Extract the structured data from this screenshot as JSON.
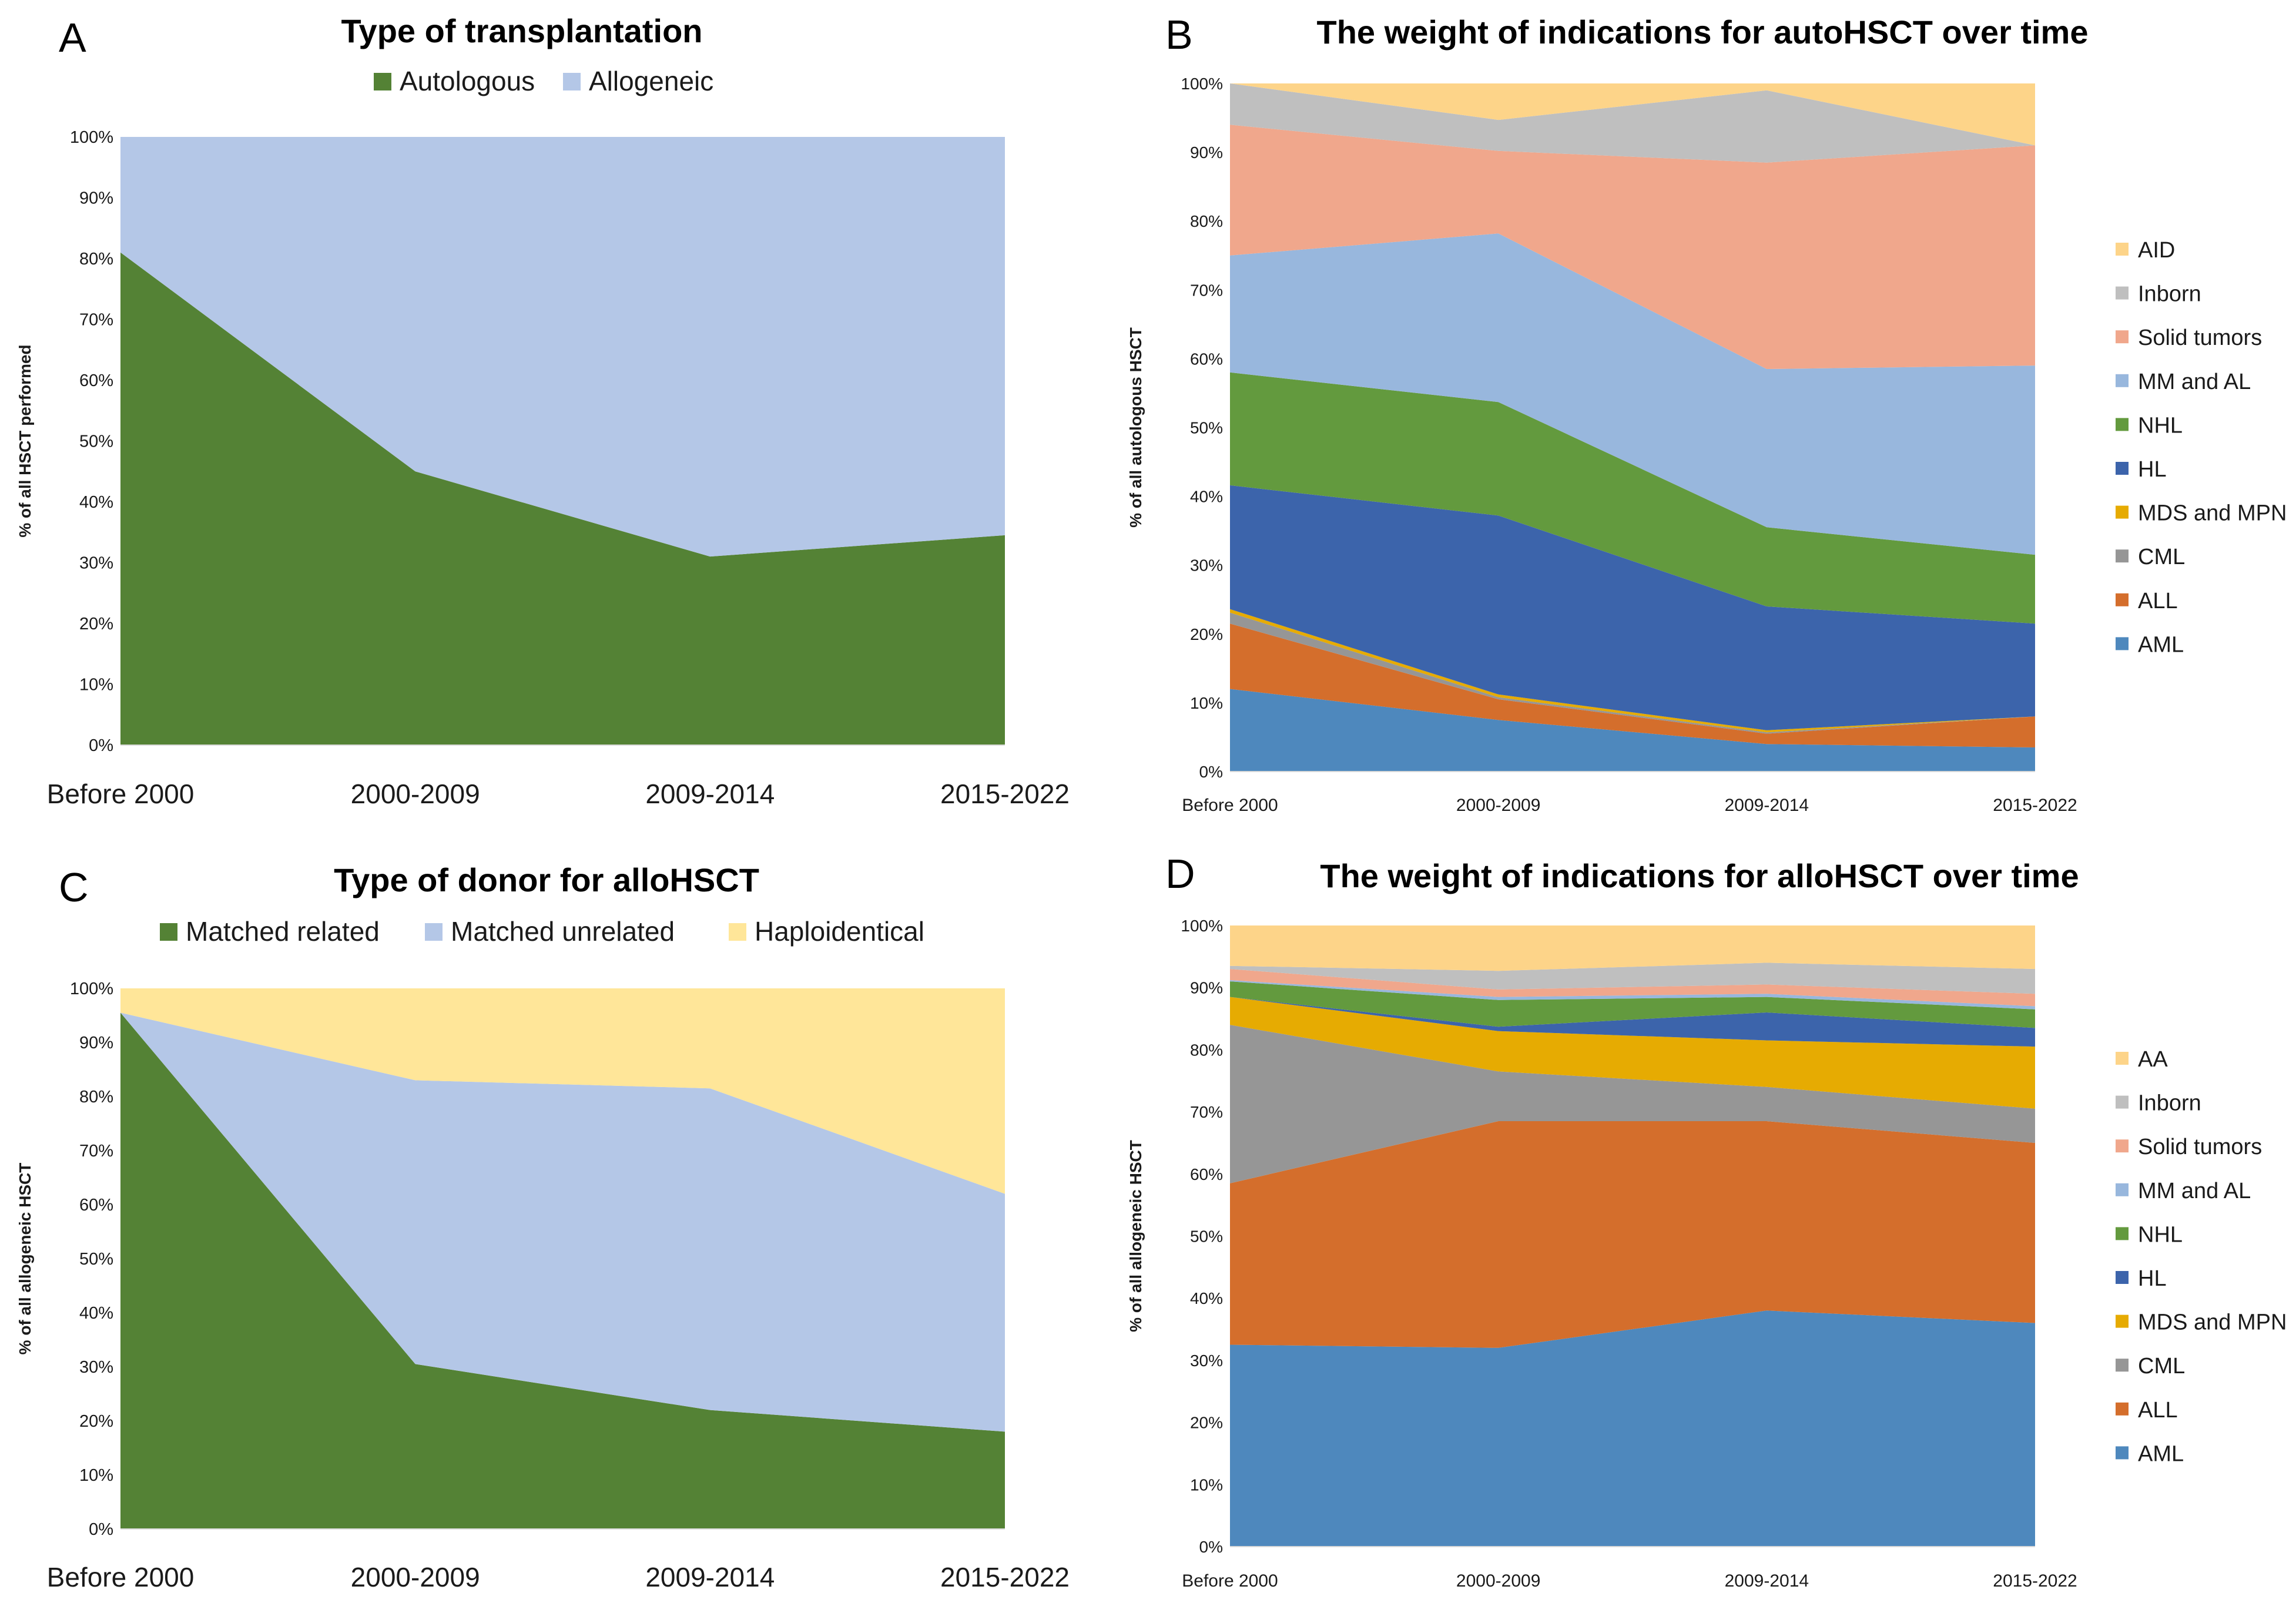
{
  "chart_data": [
    {
      "panel": "A",
      "type": "area",
      "stacked": true,
      "title": "Type of transplantation",
      "xlabel": "",
      "ylabel": "% of all HSCT performed",
      "ylim": [
        0,
        100
      ],
      "yticks": [
        "0%",
        "10%",
        "20%",
        "30%",
        "40%",
        "50%",
        "60%",
        "70%",
        "80%",
        "90%",
        "100%"
      ],
      "categories": [
        "Before 2000",
        "2000-2009",
        "2009-2014",
        "2015-2022"
      ],
      "legend_position": "top",
      "series": [
        {
          "name": "Autologous",
          "color": "#548235",
          "values": [
            81,
            45,
            31,
            34.5
          ]
        },
        {
          "name": "Allogeneic",
          "color": "#b4c7e7",
          "values": [
            19,
            55,
            69,
            65.5
          ]
        }
      ]
    },
    {
      "panel": "B",
      "type": "area",
      "stacked": true,
      "title": "The weight of indications for autoHSCT over time",
      "xlabel": "",
      "ylabel": "% of all autologous HSCT",
      "ylim": [
        0,
        100
      ],
      "yticks": [
        "0%",
        "10%",
        "20%",
        "30%",
        "40%",
        "50%",
        "60%",
        "70%",
        "80%",
        "90%",
        "100%"
      ],
      "categories": [
        "Before 2000",
        "2000-2009",
        "2009-2014",
        "2015-2022"
      ],
      "legend_position": "right",
      "series": [
        {
          "name": "AML",
          "color": "#4e88bd",
          "values": [
            12,
            7.5,
            4,
            3.5
          ]
        },
        {
          "name": "ALL",
          "color": "#d46e2c",
          "values": [
            9.5,
            3,
            1.5,
            4.5
          ]
        },
        {
          "name": "CML",
          "color": "#969696",
          "values": [
            1.6,
            0.3,
            0.2,
            0
          ]
        },
        {
          "name": "MDS and MPN",
          "color": "#e6ab02",
          "values": [
            0.5,
            0.4,
            0.3,
            0
          ]
        },
        {
          "name": "HL",
          "color": "#3c64ab",
          "values": [
            18,
            26,
            18,
            13.5
          ]
        },
        {
          "name": "NHL",
          "color": "#639a3e",
          "values": [
            16.4,
            16.5,
            11.5,
            10
          ]
        },
        {
          "name": "MM and AL",
          "color": "#98b7dd",
          "values": [
            17,
            24.5,
            23,
            27.5
          ]
        },
        {
          "name": "Solid tumors",
          "color": "#f0a78c",
          "values": [
            19,
            12,
            30,
            32
          ]
        },
        {
          "name": "Inborn",
          "color": "#bfbfbf",
          "values": [
            6,
            4.5,
            10.5,
            0
          ]
        },
        {
          "name": "AID",
          "color": "#fdd489",
          "values": [
            0,
            5.3,
            1,
            9
          ]
        }
      ]
    },
    {
      "panel": "C",
      "type": "area",
      "stacked": true,
      "title": "Type of donor for alloHSCT",
      "xlabel": "",
      "ylabel": "% of all allogeneic HSCT",
      "ylim": [
        0,
        100
      ],
      "yticks": [
        "0%",
        "10%",
        "20%",
        "30%",
        "40%",
        "50%",
        "60%",
        "70%",
        "80%",
        "90%",
        "100%"
      ],
      "categories": [
        "Before 2000",
        "2000-2009",
        "2009-2014",
        "2015-2022"
      ],
      "legend_position": "top",
      "series": [
        {
          "name": "Matched related",
          "color": "#548235",
          "values": [
            95.5,
            30.5,
            22,
            18
          ]
        },
        {
          "name": "Matched unrelated",
          "color": "#b4c7e7",
          "values": [
            0,
            52.5,
            59.5,
            44
          ]
        },
        {
          "name": "Haploidentical",
          "color": "#ffe699",
          "values": [
            4.5,
            17,
            18.5,
            38
          ]
        }
      ]
    },
    {
      "panel": "D",
      "type": "area",
      "stacked": true,
      "title": "The weight of indications for alloHSCT over time",
      "xlabel": "",
      "ylabel": "% of all allogeneic HSCT",
      "ylim": [
        0,
        100
      ],
      "yticks": [
        "0%",
        "10%",
        "20%",
        "30%",
        "40%",
        "50%",
        "60%",
        "70%",
        "80%",
        "90%",
        "100%"
      ],
      "categories": [
        "Before 2000",
        "2000-2009",
        "2009-2014",
        "2015-2022"
      ],
      "legend_position": "right",
      "series": [
        {
          "name": "AML",
          "color": "#4e88bd",
          "values": [
            32.5,
            32,
            38,
            36
          ]
        },
        {
          "name": "ALL",
          "color": "#d46e2c",
          "values": [
            26,
            36.5,
            30.5,
            29
          ]
        },
        {
          "name": "CML",
          "color": "#969696",
          "values": [
            25.5,
            8,
            5.5,
            5.5
          ]
        },
        {
          "name": "MDS and MPN",
          "color": "#e6ab02",
          "values": [
            4.5,
            6.5,
            7.5,
            10
          ]
        },
        {
          "name": "HL",
          "color": "#3c64ab",
          "values": [
            0,
            0.7,
            4.5,
            3
          ]
        },
        {
          "name": "NHL",
          "color": "#639a3e",
          "values": [
            2.5,
            4.3,
            2.5,
            3
          ]
        },
        {
          "name": "MM and AL",
          "color": "#98b7dd",
          "values": [
            0.2,
            0.5,
            0.5,
            0.5
          ]
        },
        {
          "name": "Solid tumors",
          "color": "#f0a78c",
          "values": [
            1.8,
            1.2,
            1.5,
            2
          ]
        },
        {
          "name": "Inborn",
          "color": "#bfbfbf",
          "values": [
            0.5,
            3,
            3.5,
            4
          ]
        },
        {
          "name": "AA",
          "color": "#fdd489",
          "values": [
            6.5,
            7.3,
            6,
            7
          ]
        }
      ]
    }
  ],
  "panel_letters": [
    "A",
    "B",
    "C",
    "D"
  ]
}
